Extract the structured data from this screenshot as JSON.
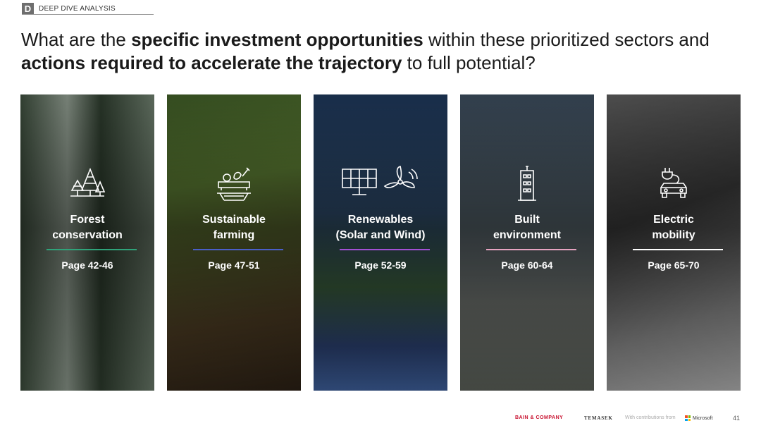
{
  "header": {
    "tag_letter": "D",
    "tag_label": "DEEP DIVE ANALYSIS"
  },
  "title": {
    "p1": "What are the ",
    "b1": "specific investment opportunities",
    "p2": " within these prioritized sectors and ",
    "b2": "actions required to accelerate the trajectory",
    "p3": " to full potential?"
  },
  "panels": [
    {
      "icon": "forest-icon",
      "line1": "Forest",
      "line2": "conservation",
      "pages": "Page 42-46",
      "accent": "#2fa37a"
    },
    {
      "icon": "farming-icon",
      "line1": "Sustainable",
      "line2": "farming",
      "pages": "Page 47-51",
      "accent": "#4a5fc8"
    },
    {
      "icon": "solar-wind-icon",
      "line1": "Renewables",
      "line2": "(Solar and Wind)",
      "pages": "Page 52-59",
      "accent": "#a24fd4"
    },
    {
      "icon": "building-icon",
      "line1": "Built",
      "line2": "environment",
      "pages": "Page 60-64",
      "accent": "#e5a3c0"
    },
    {
      "icon": "electric-car-icon",
      "line1": "Electric",
      "line2": "mobility",
      "pages": "Page 65-70",
      "accent": "#ffffff"
    }
  ],
  "footer": {
    "bain": "BAIN & COMPANY",
    "temasek": "TEMASEK",
    "with": "With contributions from",
    "microsoft": "Microsoft",
    "page_number": "41"
  }
}
